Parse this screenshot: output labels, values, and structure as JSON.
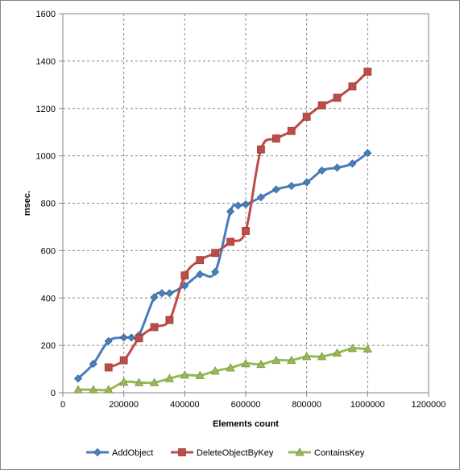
{
  "chart_data": {
    "type": "line",
    "title": "",
    "xlabel": "Elements count",
    "ylabel": "msec.",
    "xlim": [
      0,
      1200000
    ],
    "ylim": [
      0,
      1600
    ],
    "x_ticks": [
      0,
      200000,
      400000,
      600000,
      800000,
      1000000,
      1200000
    ],
    "y_ticks": [
      0,
      200,
      400,
      600,
      800,
      1000,
      1200,
      1400,
      1600
    ],
    "x_tick_labels": [
      "0",
      "200000",
      "400000",
      "600000",
      "800000",
      "1000000",
      "1200000"
    ],
    "y_tick_labels": [
      "0",
      "200",
      "400",
      "600",
      "800",
      "1000",
      "1200",
      "1400",
      "1600"
    ],
    "grid": true,
    "grid_style": "dashed",
    "legend_position": "bottom",
    "smoothed": true,
    "series": [
      {
        "name": "AddObject",
        "color": "#4A7EBB",
        "marker": "diamond",
        "x": [
          50000,
          100000,
          150000,
          200000,
          225000,
          250000,
          300000,
          325000,
          350000,
          400000,
          450000,
          500000,
          550000,
          575000,
          600000,
          650000,
          700000,
          750000,
          800000,
          850000,
          900000,
          950000,
          1000000
        ],
        "y": [
          60,
          122,
          218,
          233,
          233,
          243,
          403,
          420,
          420,
          452,
          500,
          510,
          765,
          790,
          795,
          825,
          858,
          873,
          888,
          938,
          950,
          967,
          1012
        ]
      },
      {
        "name": "DeleteObjectByKey",
        "color": "#BE4B48",
        "marker": "square",
        "x": [
          150000,
          200000,
          250000,
          300000,
          350000,
          400000,
          450000,
          500000,
          550000,
          600000,
          650000,
          700000,
          750000,
          800000,
          850000,
          900000,
          950000,
          1000000
        ],
        "y": [
          107,
          137,
          230,
          277,
          307,
          495,
          560,
          590,
          637,
          683,
          1027,
          1073,
          1105,
          1165,
          1213,
          1245,
          1293,
          1355
        ]
      },
      {
        "name": "ContainsKey",
        "color": "#98B954",
        "marker": "triangle",
        "x": [
          50000,
          100000,
          150000,
          200000,
          250000,
          300000,
          350000,
          400000,
          450000,
          500000,
          550000,
          600000,
          650000,
          700000,
          750000,
          800000,
          850000,
          900000,
          950000,
          1000000
        ],
        "y": [
          13,
          13,
          13,
          45,
          43,
          43,
          60,
          75,
          73,
          92,
          105,
          123,
          120,
          137,
          137,
          153,
          153,
          168,
          187,
          185
        ]
      }
    ]
  }
}
